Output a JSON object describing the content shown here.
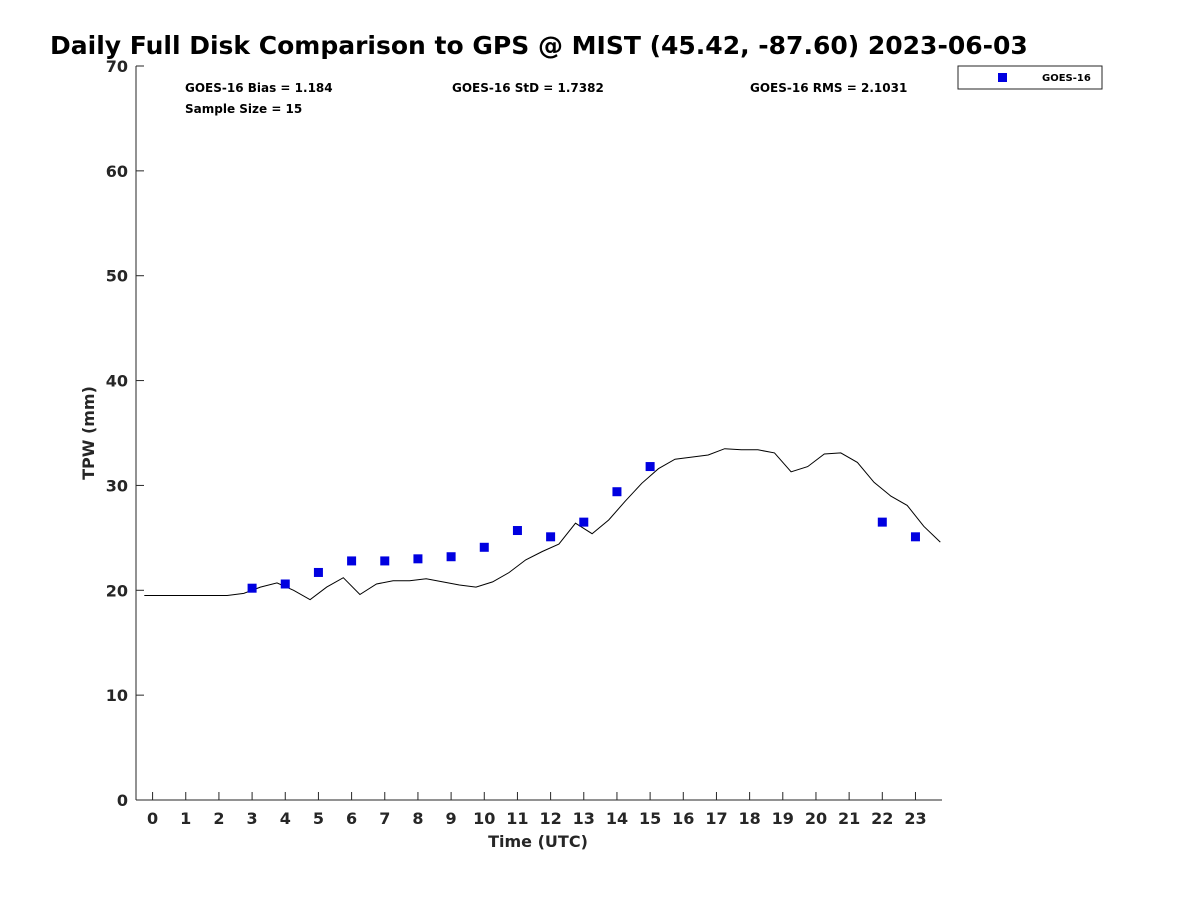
{
  "chart_data": {
    "type": "scatter",
    "title": "Daily Full Disk Comparison to GPS @ MIST (45.42, -87.60) 2023-06-03",
    "xlabel": "Time (UTC)",
    "ylabel": "TPW (mm)",
    "xlim": [
      -0.5,
      23.8
    ],
    "ylim": [
      0,
      70
    ],
    "xticks": [
      0,
      1,
      2,
      3,
      4,
      5,
      6,
      7,
      8,
      9,
      10,
      11,
      12,
      13,
      14,
      15,
      16,
      17,
      18,
      19,
      20,
      21,
      22,
      23
    ],
    "yticks": [
      0,
      10,
      20,
      30,
      40,
      50,
      60,
      70
    ],
    "stats": {
      "bias": "GOES-16 Bias = 1.184",
      "std": "GOES-16 StD = 1.7382",
      "rms": "GOES-16 RMS = 2.1031",
      "sample": "Sample Size = 15"
    },
    "legend": {
      "position": "top-right",
      "entries": [
        "GOES-16"
      ]
    },
    "series": [
      {
        "name": "GOES-16",
        "kind": "scatter",
        "color": "#0000e0",
        "x": [
          3,
          4,
          5,
          6,
          7,
          8,
          9,
          10,
          11,
          12,
          13,
          14,
          15,
          22,
          23
        ],
        "y": [
          20.2,
          20.6,
          21.7,
          22.8,
          22.8,
          23.0,
          23.2,
          24.1,
          25.7,
          25.1,
          26.5,
          29.4,
          31.8,
          26.5,
          25.1
        ]
      },
      {
        "name": "GPS",
        "kind": "line",
        "color": "#000000",
        "x": [
          -0.25,
          0,
          0.25,
          0.75,
          1.25,
          1.75,
          2.25,
          2.75,
          3.25,
          3.75,
          4.25,
          4.75,
          5.25,
          5.75,
          6.25,
          6.75,
          7.25,
          7.75,
          8.25,
          8.75,
          9.25,
          9.75,
          10.25,
          10.75,
          11.25,
          11.75,
          12.25,
          12.75,
          13.25,
          13.75,
          14.25,
          14.75,
          15.25,
          15.75,
          16.25,
          16.75,
          17.25,
          17.75,
          18.25,
          18.75,
          19.25,
          19.75,
          20.25,
          20.75,
          21.25,
          21.75,
          22.25,
          22.75,
          23.25,
          23.75
        ],
        "y": [
          19.5,
          19.5,
          19.5,
          19.5,
          19.5,
          19.5,
          19.5,
          19.7,
          20.3,
          20.7,
          20.0,
          19.1,
          20.3,
          21.2,
          19.6,
          20.6,
          20.9,
          20.9,
          21.1,
          20.8,
          20.5,
          20.3,
          20.8,
          21.7,
          22.9,
          23.7,
          24.4,
          26.4,
          25.4,
          26.7,
          28.5,
          30.2,
          31.6,
          32.5,
          32.7,
          32.9,
          33.5,
          33.4,
          33.4,
          33.1,
          31.3,
          31.8,
          33.0,
          33.1,
          32.2,
          30.3,
          29.0,
          28.1,
          26.1,
          24.6
        ]
      }
    ]
  }
}
